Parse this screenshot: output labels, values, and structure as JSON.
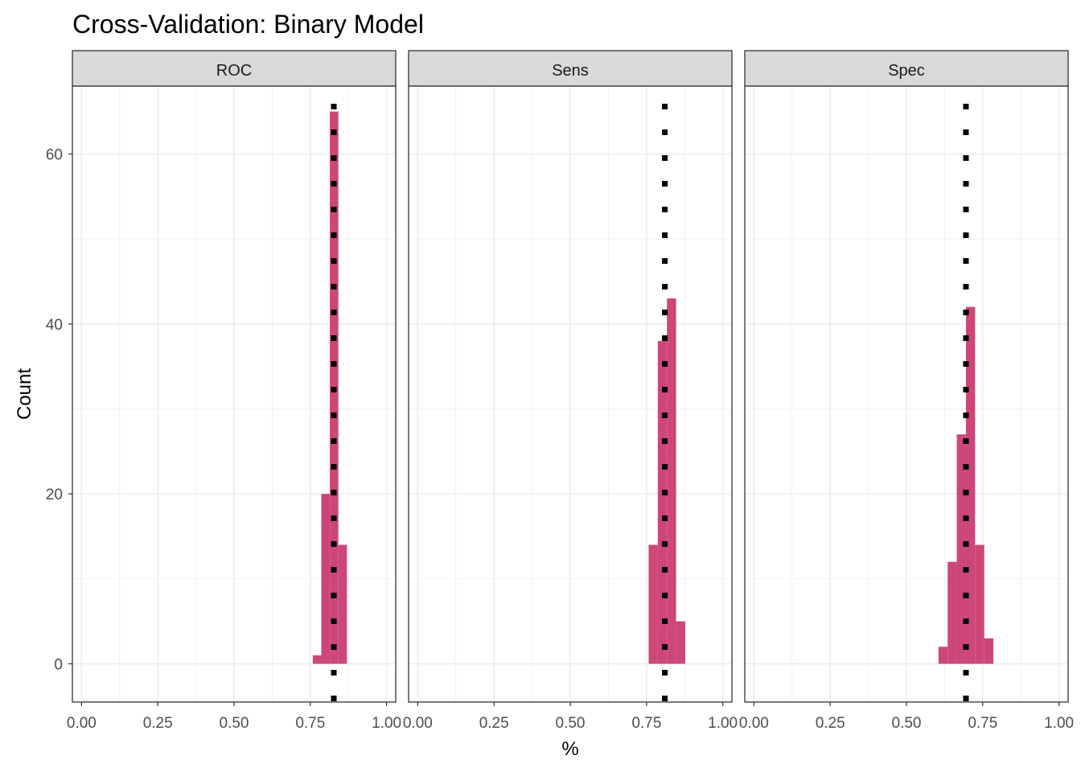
{
  "chart_data": {
    "type": "bar",
    "title": "Cross-Validation: Binary Model",
    "xlabel": "%",
    "ylabel": "Count",
    "xlim": [
      -0.03,
      1.03
    ],
    "ylim": [
      -4.5,
      68
    ],
    "x_ticks": [
      "0.00",
      "0.25",
      "0.50",
      "0.75",
      "1.00"
    ],
    "x_tick_values": [
      0,
      0.25,
      0.5,
      0.75,
      1.0
    ],
    "y_ticks": [
      "0",
      "20",
      "40",
      "60"
    ],
    "y_tick_values": [
      0,
      20,
      40,
      60
    ],
    "grid": true,
    "bar_color": "#cc4778",
    "vline_color": "#000000",
    "vline_style": "dotted",
    "panels": [
      {
        "label": "ROC",
        "mean": 0.827,
        "bins": [
          {
            "x0": 0.758,
            "x1": 0.786,
            "count": 1
          },
          {
            "x0": 0.786,
            "x1": 0.814,
            "count": 20
          },
          {
            "x0": 0.814,
            "x1": 0.842,
            "count": 65
          },
          {
            "x0": 0.842,
            "x1": 0.87,
            "count": 14
          }
        ]
      },
      {
        "label": "Sens",
        "mean": 0.81,
        "bins": [
          {
            "x0": 0.757,
            "x1": 0.787,
            "count": 14
          },
          {
            "x0": 0.787,
            "x1": 0.817,
            "count": 38
          },
          {
            "x0": 0.817,
            "x1": 0.847,
            "count": 43
          },
          {
            "x0": 0.847,
            "x1": 0.877,
            "count": 5
          }
        ]
      },
      {
        "label": "Spec",
        "mean": 0.695,
        "bins": [
          {
            "x0": 0.605,
            "x1": 0.635,
            "count": 2
          },
          {
            "x0": 0.635,
            "x1": 0.665,
            "count": 12
          },
          {
            "x0": 0.665,
            "x1": 0.695,
            "count": 27
          },
          {
            "x0": 0.695,
            "x1": 0.725,
            "count": 42
          },
          {
            "x0": 0.725,
            "x1": 0.755,
            "count": 14
          },
          {
            "x0": 0.755,
            "x1": 0.785,
            "count": 3
          }
        ]
      }
    ]
  }
}
